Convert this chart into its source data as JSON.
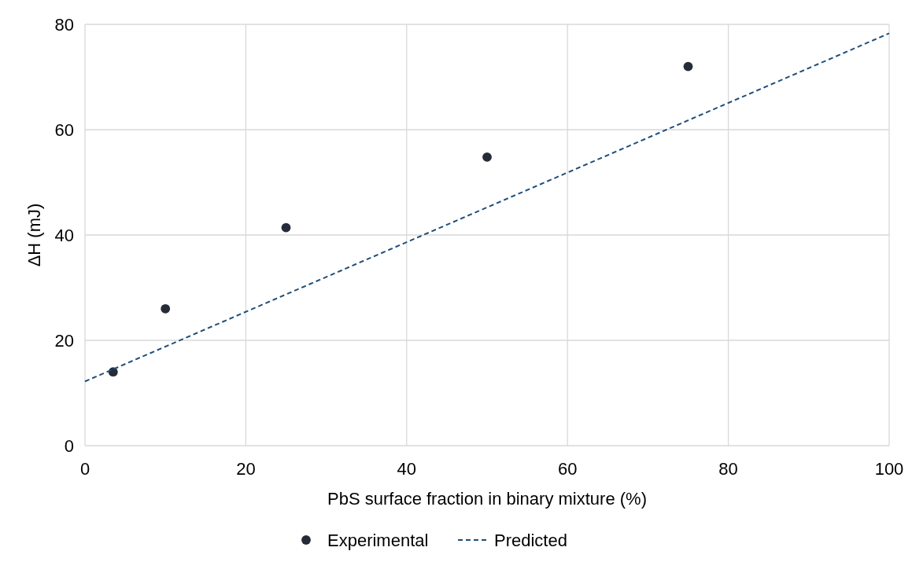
{
  "chart_data": {
    "type": "scatter",
    "xlabel": "PbS surface fraction in binary mixture (%)",
    "ylabel": "ΔH (mJ)",
    "xlim": [
      0,
      100
    ],
    "xticks": [
      0,
      20,
      40,
      60,
      80,
      100
    ],
    "ylim": [
      0,
      80
    ],
    "yticks": [
      0,
      20,
      40,
      60,
      80
    ],
    "grid": true,
    "legend": "bottom",
    "series": [
      {
        "name": "Experimental",
        "color": "#262b38",
        "marker": "circle",
        "x": [
          3.5,
          10,
          25,
          50,
          75
        ],
        "values": [
          14,
          26,
          41.4,
          54.8,
          72
        ]
      },
      {
        "name": "Predicted",
        "type": "line",
        "color": "#1f4e79",
        "line_style": "dashed",
        "marker": "none",
        "x": [
          0,
          100
        ],
        "values": [
          12.2,
          78.3
        ]
      }
    ]
  }
}
